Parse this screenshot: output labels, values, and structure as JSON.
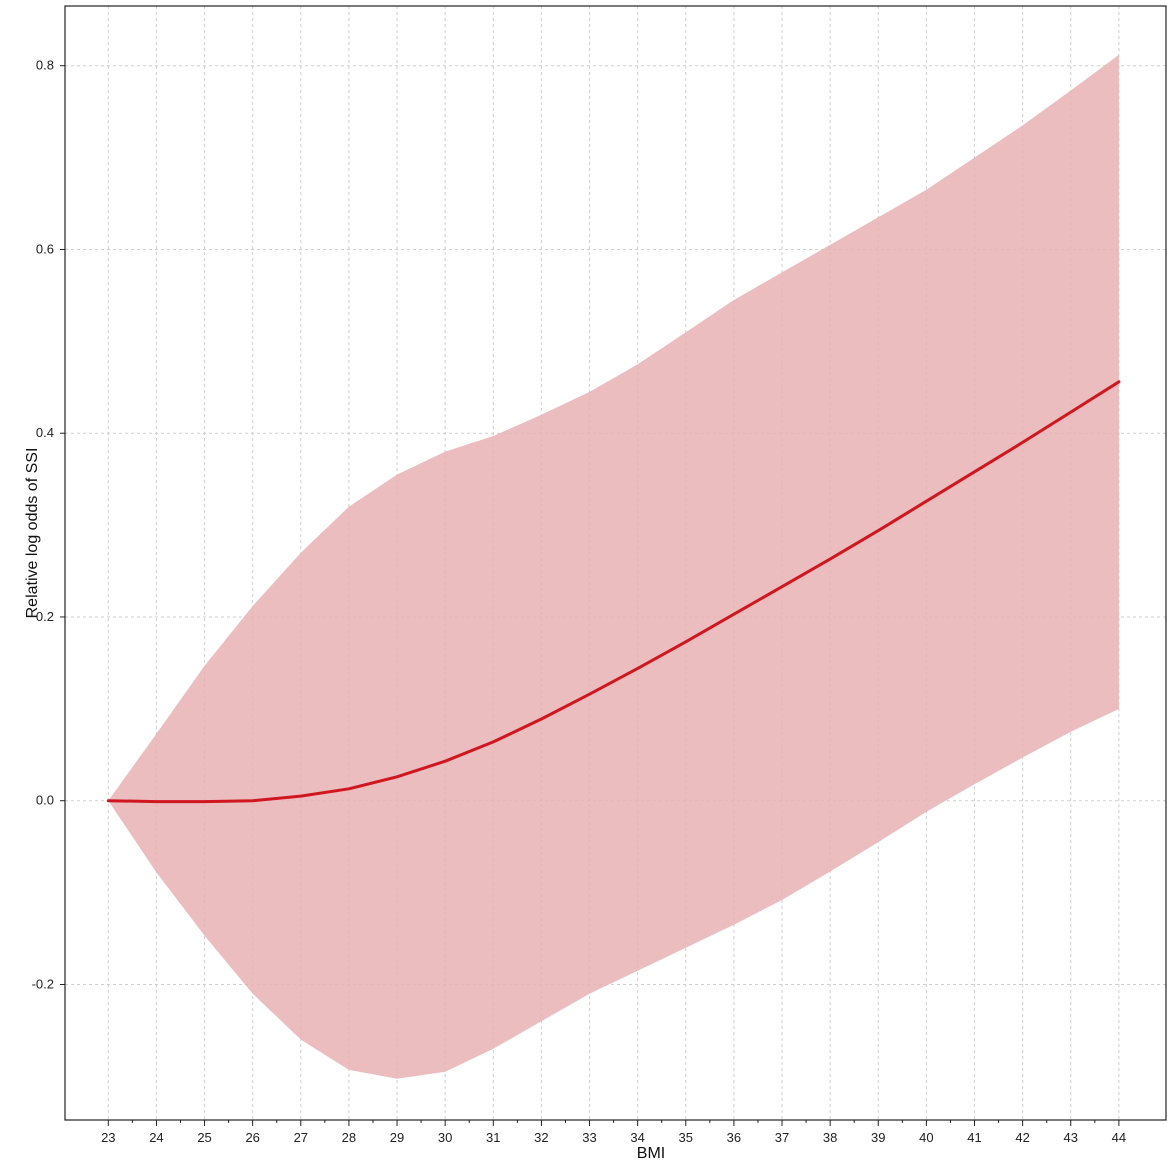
{
  "chart_data": {
    "type": "line",
    "title": "",
    "xlabel": "BMI",
    "ylabel": "Relative log odds of SSI",
    "xlim": [
      22.1,
      45
    ],
    "ylim": [
      -0.3475,
      0.865
    ],
    "xticks": [
      23,
      24,
      25,
      26,
      27,
      28,
      29,
      30,
      31,
      32,
      33,
      34,
      35,
      36,
      37,
      38,
      39,
      40,
      41,
      42,
      43,
      44
    ],
    "yticks": [
      -0.2,
      0.0,
      0.2,
      0.4,
      0.6,
      0.8
    ],
    "ytick_labels": [
      "-0.2",
      "0.0",
      "0.2",
      "0.4",
      "0.6",
      "0.8"
    ],
    "grid": true,
    "colors": {
      "line": "#d0161e",
      "band": "#e8b1b4"
    },
    "x": [
      23,
      24,
      25,
      26,
      27,
      28,
      29,
      30,
      31,
      32,
      33,
      34,
      35,
      36,
      37,
      38,
      39,
      40,
      41,
      42,
      43,
      44
    ],
    "series": [
      {
        "values": [
          0.0,
          -0.001,
          -0.001,
          0.0,
          0.005,
          0.013,
          0.026,
          0.043,
          0.064,
          0.089,
          0.116,
          0.144,
          0.173,
          0.203,
          0.233,
          0.263,
          0.294,
          0.326,
          0.358,
          0.39,
          0.423,
          0.456
        ],
        "lower": [
          0.0,
          -0.078,
          -0.147,
          -0.21,
          -0.26,
          -0.293,
          -0.3025,
          -0.295,
          -0.27,
          -0.24,
          -0.21,
          -0.185,
          -0.16,
          -0.135,
          -0.108,
          -0.077,
          -0.045,
          -0.012,
          0.018,
          0.047,
          0.075,
          0.1
        ],
        "upper": [
          0.0,
          0.073,
          0.147,
          0.212,
          0.27,
          0.32,
          0.355,
          0.38,
          0.397,
          0.42,
          0.445,
          0.475,
          0.51,
          0.545,
          0.575,
          0.605,
          0.635,
          0.665,
          0.7,
          0.735,
          0.773,
          0.812
        ]
      }
    ]
  }
}
